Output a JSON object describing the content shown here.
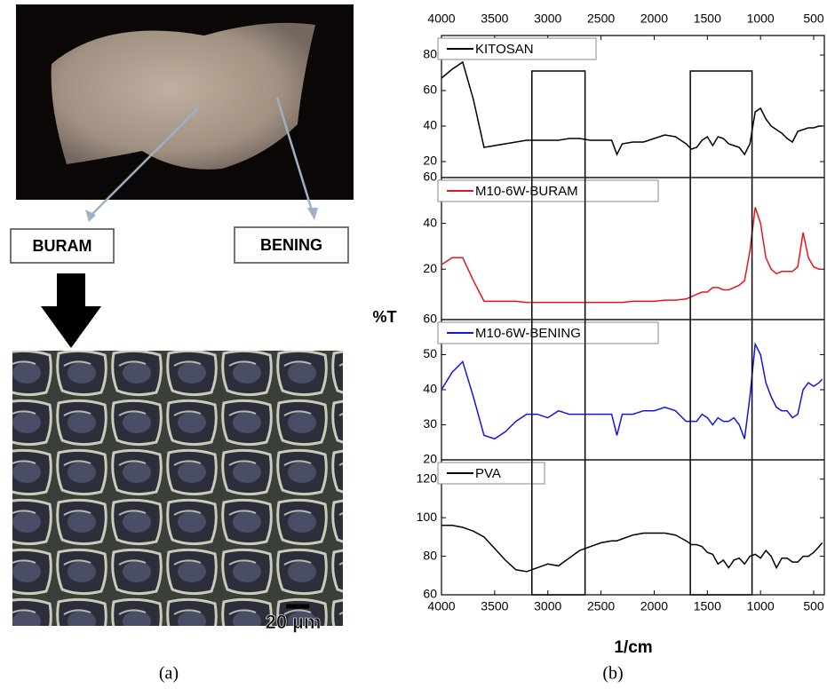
{
  "panel_a": {
    "labels": [
      "BURAM",
      "BENING"
    ],
    "scale_bar": "20 µm",
    "caption": "(a)"
  },
  "figure": {
    "y_label": "%T",
    "x_label": "1/cm",
    "caption": "(b)",
    "highlight_regions": [
      [
        3150,
        2650
      ],
      [
        1660,
        1080
      ]
    ]
  },
  "chart_data": [
    {
      "type": "line",
      "xlim": [
        4000,
        400
      ],
      "xticks": [
        4000,
        3500,
        3000,
        2500,
        2000,
        1500,
        1000,
        500
      ],
      "ylim": [
        11,
        91
      ],
      "yticks": [
        20,
        40,
        60,
        80
      ],
      "x": [
        4000,
        3900,
        3800,
        3700,
        3600,
        3500,
        3400,
        3300,
        3200,
        3100,
        3000,
        2900,
        2800,
        2700,
        2600,
        2500,
        2400,
        2350,
        2300,
        2200,
        2100,
        2000,
        1900,
        1800,
        1700,
        1650,
        1600,
        1550,
        1500,
        1450,
        1400,
        1350,
        1300,
        1250,
        1200,
        1150,
        1100,
        1050,
        1000,
        950,
        900,
        850,
        800,
        750,
        700,
        650,
        600,
        550,
        500,
        450,
        420
      ],
      "series": [
        {
          "name": "KITOSAN",
          "color": "#000000",
          "values": [
            67,
            72,
            76,
            55,
            28,
            29,
            30,
            31,
            32,
            32,
            32,
            32,
            33,
            33,
            32,
            32,
            32,
            24,
            30,
            31,
            31,
            33,
            35,
            34,
            30,
            27,
            28,
            32,
            34,
            29,
            34,
            33,
            30,
            29,
            28,
            24,
            30,
            48,
            50,
            44,
            40,
            38,
            36,
            33,
            31,
            37,
            38,
            39,
            39,
            40,
            40
          ]
        }
      ]
    },
    {
      "type": "line",
      "xlim": [
        4000,
        400
      ],
      "ylim": [
        -2,
        60
      ],
      "yticks": [
        20,
        40,
        60
      ],
      "x": [
        4000,
        3900,
        3800,
        3700,
        3600,
        3500,
        3400,
        3300,
        3200,
        3100,
        3000,
        2900,
        2800,
        2700,
        2600,
        2500,
        2400,
        2350,
        2300,
        2200,
        2100,
        2000,
        1900,
        1800,
        1700,
        1650,
        1600,
        1550,
        1500,
        1450,
        1400,
        1350,
        1300,
        1250,
        1200,
        1150,
        1100,
        1050,
        1000,
        950,
        900,
        850,
        800,
        750,
        700,
        650,
        600,
        550,
        500,
        450,
        420
      ],
      "series": [
        {
          "name": "M10-6W-BURAM",
          "color": "#e8141c",
          "values": [
            22,
            25,
            25,
            15,
            6,
            6,
            6,
            6,
            5.5,
            5.5,
            5.5,
            5.5,
            5.5,
            5.5,
            5.5,
            5.5,
            5.5,
            5.5,
            5.5,
            6,
            6,
            6,
            6.5,
            6.5,
            7,
            8,
            9,
            10,
            10,
            12,
            12,
            11,
            11,
            12,
            13,
            15,
            28,
            47,
            40,
            25,
            20,
            18,
            19,
            19,
            19,
            21,
            36,
            25,
            21,
            20,
            20
          ]
        }
      ]
    },
    {
      "type": "line",
      "xlim": [
        4000,
        400
      ],
      "ylim": [
        20,
        60
      ],
      "yticks": [
        20,
        30,
        40,
        50,
        60
      ],
      "x": [
        4000,
        3900,
        3800,
        3700,
        3600,
        3500,
        3400,
        3300,
        3200,
        3100,
        3000,
        2900,
        2800,
        2700,
        2600,
        2500,
        2400,
        2350,
        2300,
        2200,
        2100,
        2000,
        1900,
        1800,
        1700,
        1650,
        1600,
        1550,
        1500,
        1450,
        1400,
        1350,
        1300,
        1250,
        1200,
        1150,
        1100,
        1050,
        1000,
        950,
        900,
        850,
        800,
        750,
        700,
        650,
        600,
        550,
        500,
        450,
        420
      ],
      "series": [
        {
          "name": "M10-6W-BENING",
          "color": "#1414e6",
          "values": [
            40,
            45,
            48,
            38,
            27,
            26,
            28,
            31,
            33,
            33,
            32,
            34,
            33,
            33,
            33,
            33,
            33,
            27,
            33,
            33,
            34,
            34,
            35,
            34,
            31,
            31,
            31,
            33,
            32,
            30,
            32,
            31,
            31,
            32,
            30,
            26,
            38,
            53,
            50,
            42,
            38,
            35,
            34,
            34,
            32,
            33,
            40,
            42,
            41,
            42,
            43
          ]
        }
      ]
    },
    {
      "type": "line",
      "xlim": [
        4000,
        400
      ],
      "xticks": [
        4000,
        3500,
        3000,
        2500,
        2000,
        1500,
        1000,
        500
      ],
      "ylim": [
        60,
        130
      ],
      "yticks": [
        60,
        80,
        100,
        120
      ],
      "x": [
        4000,
        3900,
        3800,
        3700,
        3600,
        3500,
        3400,
        3300,
        3200,
        3100,
        3000,
        2900,
        2800,
        2700,
        2600,
        2500,
        2400,
        2350,
        2300,
        2200,
        2100,
        2000,
        1900,
        1800,
        1700,
        1650,
        1600,
        1550,
        1500,
        1450,
        1400,
        1350,
        1300,
        1250,
        1200,
        1150,
        1100,
        1050,
        1000,
        950,
        900,
        850,
        800,
        750,
        700,
        650,
        600,
        550,
        500,
        450,
        420
      ],
      "series": [
        {
          "name": "PVA",
          "color": "#000000",
          "values": [
            96,
            96,
            95,
            93,
            90,
            84,
            78,
            73,
            72,
            74,
            76,
            75,
            79,
            83,
            85,
            87,
            88,
            88,
            89,
            91,
            92,
            92,
            92,
            91,
            88,
            86,
            86,
            85,
            82,
            81,
            76,
            78,
            74,
            78,
            79,
            76,
            80,
            81,
            79,
            83,
            80,
            74,
            79,
            79,
            77,
            77,
            80,
            80,
            82,
            85,
            87
          ]
        }
      ]
    }
  ]
}
